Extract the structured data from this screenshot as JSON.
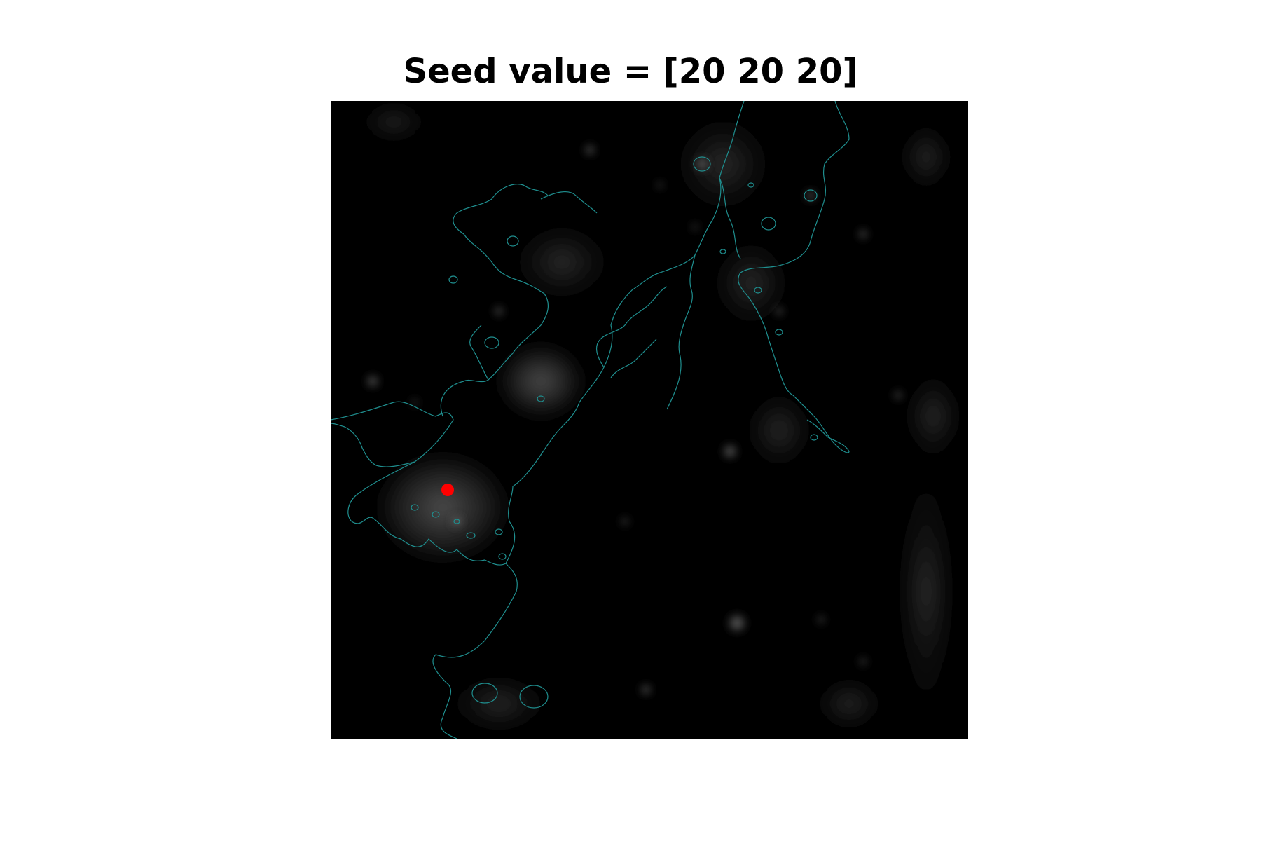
{
  "figure": {
    "title": "Seed value = [20 20 20]"
  },
  "image": {
    "description_icon": "microscopy-image",
    "background_color": "#000000",
    "contour_color": "#1f8f8f",
    "seed_color": "#ff0000"
  }
}
